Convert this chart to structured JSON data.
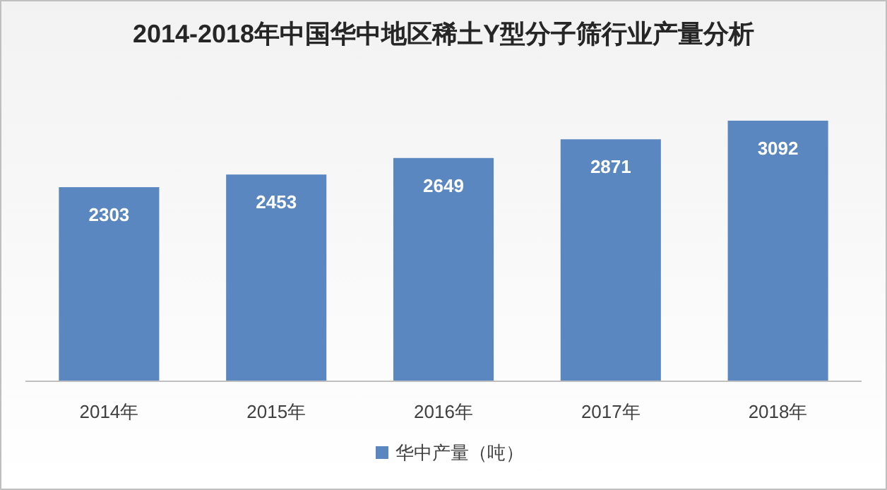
{
  "chart_data": {
    "type": "bar",
    "title": "2014-2018年中国华中地区稀土Y型分子筛行业产量分析",
    "categories": [
      "2014年",
      "2015年",
      "2016年",
      "2017年",
      "2018年"
    ],
    "series": [
      {
        "name": "华中产量（吨）",
        "color": "#5b87c1",
        "values": [
          2303,
          2453,
          2649,
          2871,
          3092
        ]
      }
    ],
    "data_labels": true,
    "legend": "bottom"
  }
}
